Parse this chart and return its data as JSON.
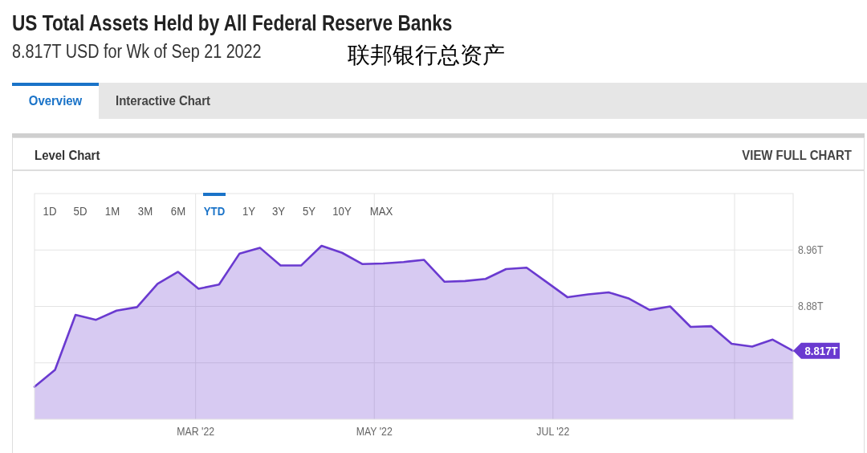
{
  "chart_data": {
    "type": "area",
    "title": "US Total Assets Held by All Federal Reserve Banks",
    "subtitle": "8.817T USD for Wk of Sep 21 2022",
    "annotations": [
      "联邦银行总资产",
      "Overview",
      "Interactive Chart",
      "Level Chart",
      "VIEW FULL CHART",
      "1D",
      "5D",
      "1M",
      "3M",
      "6M",
      "YTD",
      "1Y",
      "3Y",
      "5Y",
      "10Y",
      "MAX"
    ],
    "x": [
      "2022-01-05",
      "2022-01-12",
      "2022-01-19",
      "2022-01-26",
      "2022-02-02",
      "2022-02-09",
      "2022-02-16",
      "2022-02-23",
      "2022-03-02",
      "2022-03-09",
      "2022-03-16",
      "2022-03-23",
      "2022-03-30",
      "2022-04-06",
      "2022-04-13",
      "2022-04-20",
      "2022-04-27",
      "2022-05-04",
      "2022-05-11",
      "2022-05-18",
      "2022-05-25",
      "2022-06-01",
      "2022-06-08",
      "2022-06-15",
      "2022-06-22",
      "2022-06-29",
      "2022-07-06",
      "2022-07-13",
      "2022-07-20",
      "2022-07-27",
      "2022-08-03",
      "2022-08-10",
      "2022-08-17",
      "2022-08-24",
      "2022-08-31",
      "2022-09-07",
      "2022-09-14",
      "2022-09-21"
    ],
    "values": [
      8.766,
      8.79,
      8.868,
      8.861,
      8.874,
      8.879,
      8.912,
      8.929,
      8.905,
      8.911,
      8.955,
      8.963,
      8.938,
      8.938,
      8.966,
      8.956,
      8.94,
      8.941,
      8.943,
      8.946,
      8.915,
      8.916,
      8.919,
      8.933,
      8.935,
      8.914,
      8.893,
      8.897,
      8.9,
      8.891,
      8.875,
      8.88,
      8.851,
      8.852,
      8.827,
      8.823,
      8.833,
      8.817
    ],
    "value_labels": [
      null,
      null,
      null,
      null,
      null,
      null,
      null,
      null,
      null,
      null,
      null,
      null,
      null,
      null,
      null,
      null,
      null,
      null,
      null,
      null,
      null,
      null,
      null,
      null,
      null,
      null,
      null,
      null,
      null,
      null,
      null,
      null,
      null,
      null,
      null,
      null,
      null,
      "8.817T"
    ],
    "color": "#6a3ad0",
    "xlim": [
      "2022-01-05",
      "2022-09-21"
    ],
    "xticks": [
      {
        "value": "2022-03-01",
        "label": "MAR '22"
      },
      {
        "value": "2022-05-01",
        "label": "MAY '22"
      },
      {
        "value": "2022-07-01",
        "label": "JUL '22"
      },
      {
        "value": "2022-09-01",
        "label": null
      }
    ],
    "ylim": [
      8.72,
      9.04
    ],
    "yticks": [
      {
        "value": 8.8,
        "label": null
      },
      {
        "value": 8.88,
        "label": "8.88T"
      },
      {
        "value": 8.96,
        "label": "8.96T"
      }
    ],
    "grid": true
  }
}
